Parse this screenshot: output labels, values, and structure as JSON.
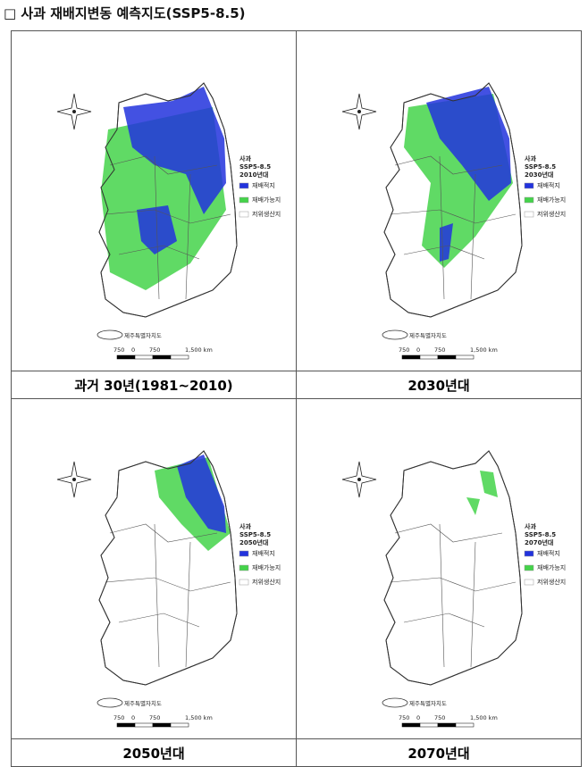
{
  "header": {
    "title": "□ 사과 재배지변동 예측지도(SSP5-8.5)"
  },
  "panels": [
    {
      "caption": "과거 30년(1981~2010)",
      "legend": {
        "crop": "사과",
        "scenario": "SSP5-8.5",
        "period": "2010년대",
        "items": [
          "재배적지",
          "재배가능지",
          "저위생산지"
        ]
      },
      "scale": [
        "750",
        "0",
        "750",
        "1,500 km"
      ],
      "jeju": "제주특별자치도"
    },
    {
      "caption": "2030년대",
      "legend": {
        "crop": "사과",
        "scenario": "SSP5-8.5",
        "period": "2030년대",
        "items": [
          "재배적지",
          "재배가능지",
          "저위생산지"
        ]
      },
      "scale": [
        "750",
        "0",
        "750",
        "1,500 km"
      ],
      "jeju": "제주특별자치도"
    },
    {
      "caption": "2050년대",
      "legend": {
        "crop": "사과",
        "scenario": "SSP5-8.5",
        "period": "2050년대",
        "items": [
          "재배적지",
          "재배가능지",
          "저위생산지"
        ]
      },
      "scale": [
        "750",
        "0",
        "750",
        "1,500 km"
      ],
      "jeju": "제주특별자치도"
    },
    {
      "caption": "2070년대",
      "legend": {
        "crop": "사과",
        "scenario": "SSP5-8.5",
        "period": "2070년대",
        "items": [
          "재배적지",
          "재배가능지",
          "저위생산지"
        ]
      },
      "scale": [
        "750",
        "0",
        "750",
        "1,500 km"
      ],
      "jeju": "제주특별자치도"
    }
  ]
}
